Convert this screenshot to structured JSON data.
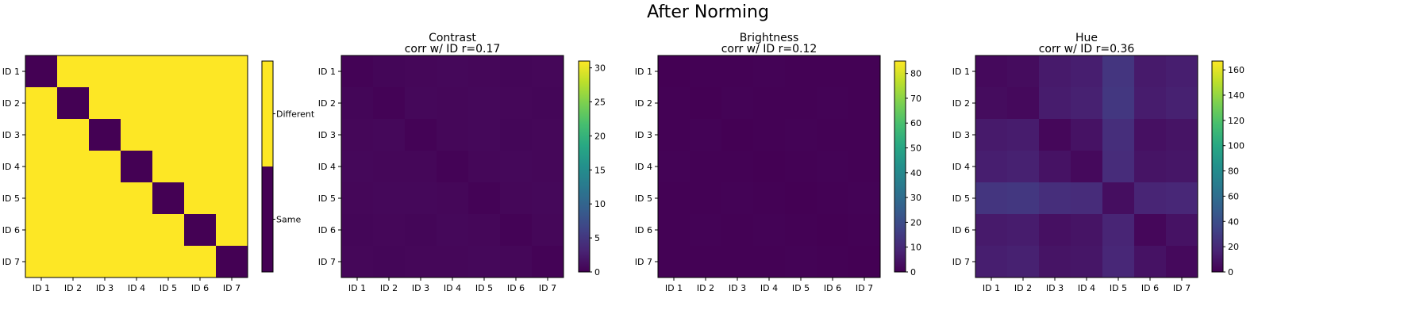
{
  "figure": {
    "title": "After Norming"
  },
  "chart_data": [
    {
      "type": "heatmap",
      "title": "",
      "subtitle": "",
      "mode": "identity",
      "row_labels": [
        "ID 1",
        "ID 2",
        "ID 3",
        "ID 4",
        "ID 5",
        "ID 6",
        "ID 7"
      ],
      "col_labels": [
        "ID 1",
        "ID 2",
        "ID 3",
        "ID 4",
        "ID 5",
        "ID 6",
        "ID 7"
      ],
      "values": [
        [
          0,
          1,
          1,
          1,
          1,
          1,
          1
        ],
        [
          1,
          0,
          1,
          1,
          1,
          1,
          1
        ],
        [
          1,
          1,
          0,
          1,
          1,
          1,
          1
        ],
        [
          1,
          1,
          1,
          0,
          1,
          1,
          1
        ],
        [
          1,
          1,
          1,
          1,
          0,
          1,
          1
        ],
        [
          1,
          1,
          1,
          1,
          1,
          0,
          1
        ],
        [
          1,
          1,
          1,
          1,
          1,
          1,
          0
        ]
      ],
      "colorbar": {
        "type": "categorical",
        "labels": [
          "Same",
          "Different"
        ],
        "colors": [
          "#440154",
          "#fde725"
        ]
      }
    },
    {
      "type": "heatmap",
      "title": "Contrast",
      "subtitle": "corr w/ ID r=0.17",
      "row_labels": [
        "ID 1",
        "ID 2",
        "ID 3",
        "ID 4",
        "ID 5",
        "ID 6",
        "ID 7"
      ],
      "col_labels": [
        "ID 1",
        "ID 2",
        "ID 3",
        "ID 4",
        "ID 5",
        "ID 6",
        "ID 7"
      ],
      "values": [
        [
          0.2,
          0.4,
          0.5,
          0.6,
          0.5,
          0.4,
          0.5
        ],
        [
          0.4,
          0.2,
          0.6,
          0.5,
          0.6,
          0.5,
          0.4
        ],
        [
          0.5,
          0.6,
          0.2,
          0.5,
          0.6,
          0.4,
          0.5
        ],
        [
          0.6,
          0.5,
          0.5,
          0.2,
          0.5,
          0.6,
          0.5
        ],
        [
          0.5,
          0.6,
          0.6,
          0.5,
          0.2,
          0.5,
          0.6
        ],
        [
          0.4,
          0.5,
          0.4,
          0.6,
          0.5,
          0.2,
          0.5
        ],
        [
          0.5,
          0.4,
          0.5,
          0.5,
          0.6,
          0.5,
          0.2
        ]
      ],
      "colorbar": {
        "type": "continuous",
        "min": 0,
        "max": 31,
        "ticks": [
          0,
          5,
          10,
          15,
          20,
          25,
          30
        ]
      }
    },
    {
      "type": "heatmap",
      "title": "Brightness",
      "subtitle": "corr w/ ID r=0.12",
      "row_labels": [
        "ID 1",
        "ID 2",
        "ID 3",
        "ID 4",
        "ID 5",
        "ID 6",
        "ID 7"
      ],
      "col_labels": [
        "ID 1",
        "ID 2",
        "ID 3",
        "ID 4",
        "ID 5",
        "ID 6",
        "ID 7"
      ],
      "values": [
        [
          0.1,
          0.3,
          0.3,
          0.4,
          0.3,
          0.3,
          0.3
        ],
        [
          0.3,
          0.1,
          0.4,
          0.3,
          0.3,
          0.4,
          0.3
        ],
        [
          0.3,
          0.4,
          0.1,
          0.3,
          0.4,
          0.3,
          0.3
        ],
        [
          0.4,
          0.3,
          0.3,
          0.1,
          0.3,
          0.4,
          0.3
        ],
        [
          0.3,
          0.3,
          0.4,
          0.3,
          0.1,
          0.3,
          0.4
        ],
        [
          0.3,
          0.4,
          0.3,
          0.4,
          0.3,
          0.1,
          0.3
        ],
        [
          0.3,
          0.3,
          0.3,
          0.3,
          0.4,
          0.3,
          0.1
        ]
      ],
      "colorbar": {
        "type": "continuous",
        "min": 0,
        "max": 85,
        "ticks": [
          0,
          10,
          20,
          30,
          40,
          50,
          60,
          70,
          80
        ]
      }
    },
    {
      "type": "heatmap",
      "title": "Hue",
      "subtitle": "corr w/ ID r=0.36",
      "row_labels": [
        "ID 1",
        "ID 2",
        "ID 3",
        "ID 4",
        "ID 5",
        "ID 6",
        "ID 7"
      ],
      "col_labels": [
        "ID 1",
        "ID 2",
        "ID 3",
        "ID 4",
        "ID 5",
        "ID 6",
        "ID 7"
      ],
      "values": [
        [
          4,
          5,
          12,
          14,
          26,
          12,
          14
        ],
        [
          5,
          4,
          13,
          15,
          27,
          13,
          15
        ],
        [
          12,
          13,
          3,
          8,
          22,
          7,
          9
        ],
        [
          14,
          15,
          8,
          4,
          21,
          9,
          10
        ],
        [
          26,
          27,
          22,
          21,
          6,
          17,
          18
        ],
        [
          12,
          13,
          7,
          9,
          17,
          3,
          8
        ],
        [
          14,
          15,
          9,
          10,
          18,
          8,
          4
        ]
      ],
      "colorbar": {
        "type": "continuous",
        "min": 0,
        "max": 167,
        "ticks": [
          0,
          20,
          40,
          60,
          80,
          100,
          120,
          140,
          160
        ]
      }
    }
  ]
}
